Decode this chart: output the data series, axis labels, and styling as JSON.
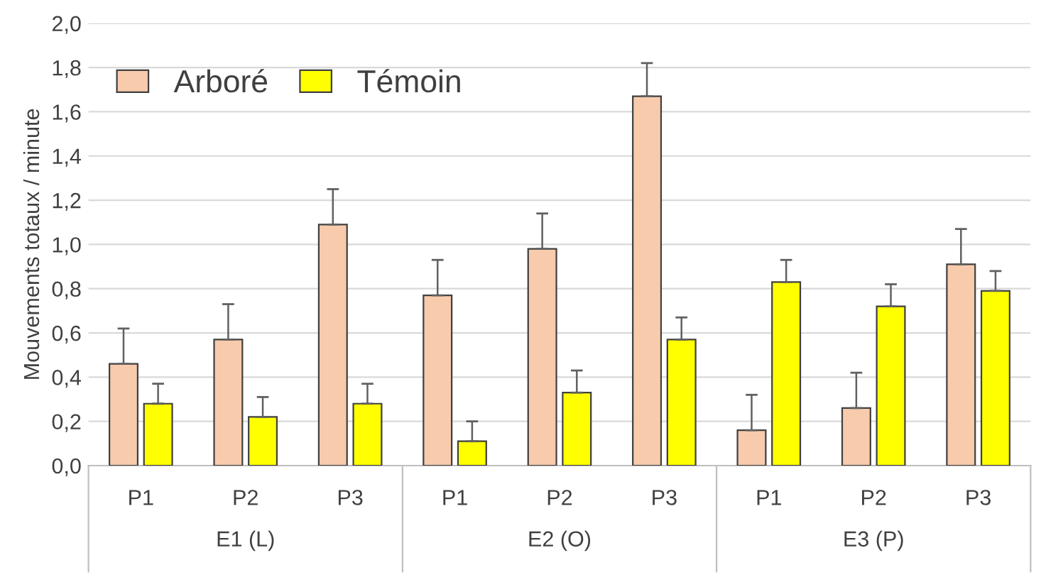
{
  "chart_data": {
    "type": "bar",
    "ylabel": "Mouvements totaux / minute",
    "categories": [
      "P1",
      "P2",
      "P3",
      "P1",
      "P2",
      "P3",
      "P1",
      "P2",
      "P3"
    ],
    "annotations": [
      "E1 (L)",
      "E2 (O)",
      "E3 (P)"
    ],
    "series": [
      {
        "name": "Arboré",
        "color": "#f8cbad",
        "values": [
          0.46,
          0.57,
          1.09,
          0.77,
          0.98,
          1.67,
          0.16,
          0.26,
          0.91
        ],
        "errors": [
          [
            0.46,
            0.62
          ],
          [
            0.57,
            0.73
          ],
          [
            1.09,
            1.25
          ],
          [
            0.77,
            0.93
          ],
          [
            0.98,
            1.14
          ],
          [
            1.67,
            1.82
          ],
          [
            0.16,
            0.32
          ],
          [
            0.26,
            0.42
          ],
          [
            0.91,
            1.07
          ]
        ]
      },
      {
        "name": "Témoin",
        "color": "#ffff00",
        "values": [
          0.28,
          0.22,
          0.28,
          0.11,
          0.33,
          0.57,
          0.83,
          0.72,
          0.79
        ],
        "errors": [
          [
            0.28,
            0.37
          ],
          [
            0.22,
            0.31
          ],
          [
            0.28,
            0.37
          ],
          [
            0.11,
            0.2
          ],
          [
            0.33,
            0.43
          ],
          [
            0.57,
            0.67
          ],
          [
            0.83,
            0.93
          ],
          [
            0.72,
            0.82
          ],
          [
            0.79,
            0.88
          ]
        ]
      }
    ],
    "ylim": [
      0,
      2
    ],
    "yticks": [
      {
        "value": 0,
        "label": "0,0"
      },
      {
        "value": 0.2,
        "label": "0,2"
      },
      {
        "value": 0.4,
        "label": "0,4"
      },
      {
        "value": 0.6,
        "label": "0,6"
      },
      {
        "value": 0.8,
        "label": "0,8"
      },
      {
        "value": 1.0,
        "label": "1,0"
      },
      {
        "value": 1.2,
        "label": "1,2"
      },
      {
        "value": 1.4,
        "label": "1,4"
      },
      {
        "value": 1.6,
        "label": "1,6"
      },
      {
        "value": 1.8,
        "label": "1,8"
      },
      {
        "value": 2.0,
        "label": "2,0"
      }
    ],
    "grid": "y",
    "legend": "top left"
  }
}
